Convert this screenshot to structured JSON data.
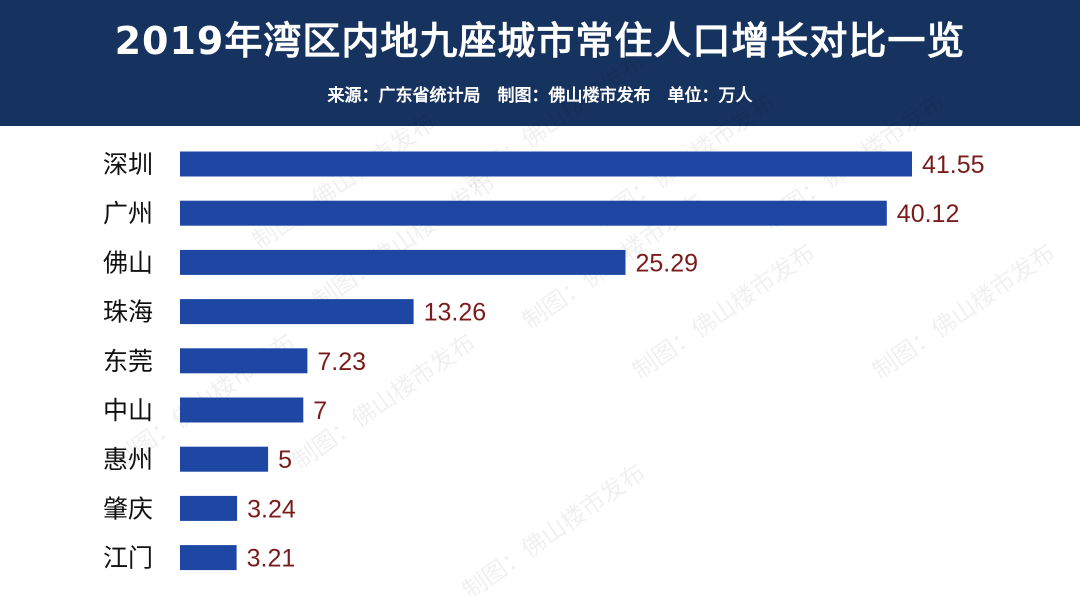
{
  "chart_data": {
    "type": "bar",
    "orientation": "horizontal",
    "title": "2019年湾区内地九座城市常住人口增长对比一览",
    "subtitle": "来源：广东省统计局　制图：佛山楼市发布　单位：万人",
    "categories": [
      "深圳",
      "广州",
      "佛山",
      "珠海",
      "东莞",
      "中山",
      "惠州",
      "肇庆",
      "江门"
    ],
    "values": [
      41.55,
      40.12,
      25.29,
      13.26,
      7.23,
      7,
      5,
      3.24,
      3.21
    ],
    "value_labels": [
      "41.55",
      "40.12",
      "25.29",
      "13.26",
      "7.23",
      "7",
      "5",
      "3.24",
      "3.21"
    ],
    "xlim": [
      0,
      41.55
    ],
    "bar_color": "#1d47a3",
    "value_label_color": "#7a1c1c",
    "header_color": "#16325f",
    "grid": false,
    "legend": "none"
  },
  "watermark": "制图：佛山楼市发布"
}
